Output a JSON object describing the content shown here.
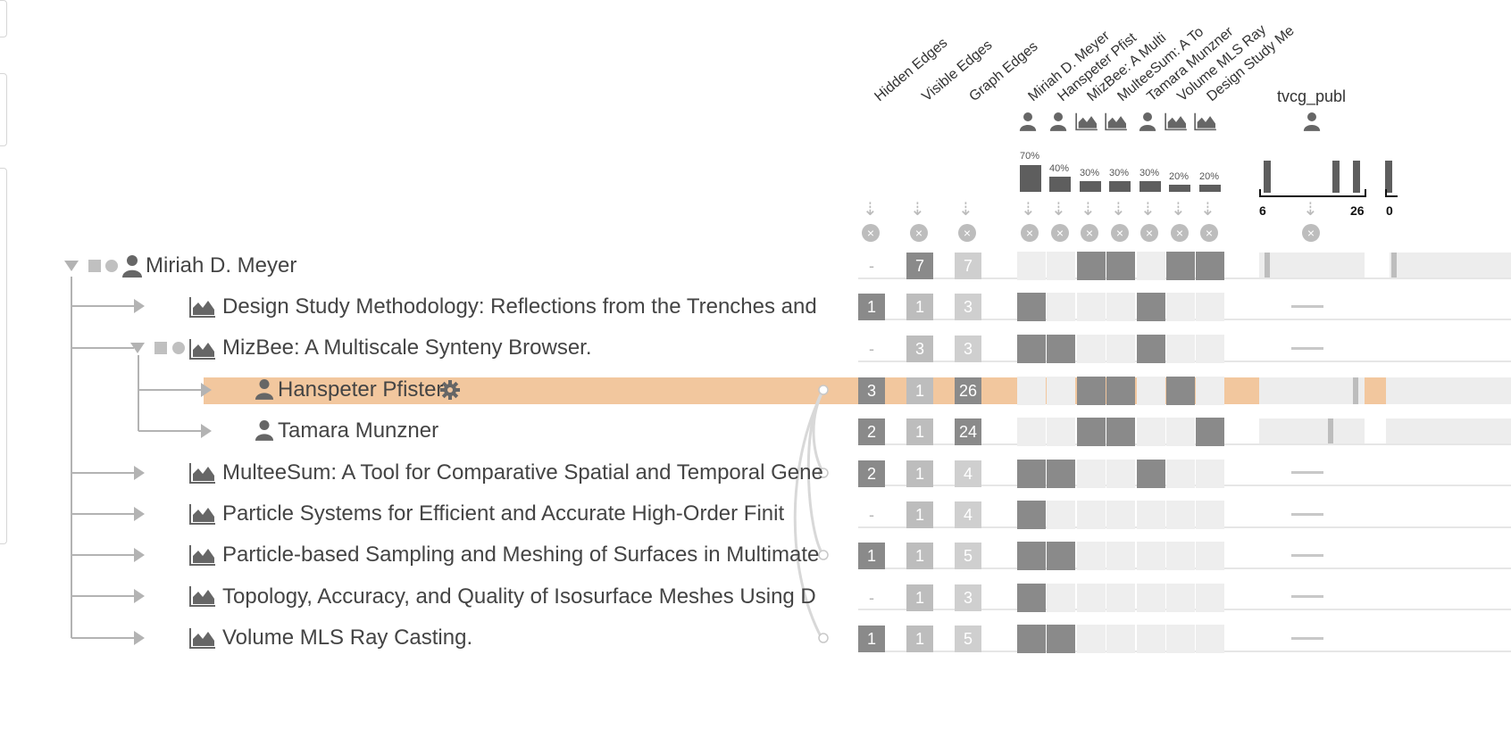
{
  "columns": {
    "headers": [
      "Hidden Edges",
      "Visible Edges",
      "Graph Edges"
    ],
    "matrix_headers": [
      "Miriah D. Meyer",
      "Hanspeter Pfist",
      "MizBee: A Multi",
      "MulteeSum: A To",
      "Tamara Munzner",
      "Volume MLS Ray",
      "Design Study Me"
    ],
    "matrix_header_icons": [
      "person-icon",
      "person-icon",
      "area-chart-icon",
      "area-chart-icon",
      "person-icon",
      "area-chart-icon",
      "area-chart-icon"
    ],
    "percentages": [
      "70%",
      "40%",
      "30%",
      "30%",
      "30%",
      "20%",
      "20%"
    ],
    "percent_values": [
      70,
      40,
      30,
      30,
      30,
      20,
      20
    ],
    "attribute_header": "tvcg_publ",
    "attribute_icon": "person-icon",
    "axis_min": "6",
    "axis_max": "26",
    "axis_next": "0"
  },
  "rows": [
    {
      "label": "Miriah D. Meyer",
      "icon": "person-icon",
      "hidden": "-",
      "visible": "7",
      "graph": "7",
      "matrix": [
        0,
        0,
        1,
        1,
        0,
        1,
        1
      ]
    },
    {
      "label": "Design Study Methodology: Reflections from the Trenches and",
      "icon": "area-chart-icon",
      "hidden": "1",
      "visible": "1",
      "graph": "3",
      "matrix": [
        1,
        0,
        0,
        0,
        1,
        0,
        0
      ]
    },
    {
      "label": "MizBee: A Multiscale Synteny Browser.",
      "icon": "area-chart-icon",
      "hidden": "-",
      "visible": "3",
      "graph": "3",
      "matrix": [
        1,
        1,
        0,
        0,
        1,
        0,
        0
      ]
    },
    {
      "label": "Hanspeter Pfister",
      "icon": "person-icon",
      "hidden": "3",
      "visible": "1",
      "graph": "26",
      "matrix": [
        0,
        0,
        1,
        1,
        0,
        1,
        0
      ],
      "highlighted": true
    },
    {
      "label": "Tamara Munzner",
      "icon": "person-icon",
      "hidden": "2",
      "visible": "1",
      "graph": "24",
      "matrix": [
        0,
        0,
        1,
        1,
        0,
        0,
        1
      ]
    },
    {
      "label": "MulteeSum: A Tool for Comparative Spatial and Temporal Gene",
      "icon": "area-chart-icon",
      "hidden": "2",
      "visible": "1",
      "graph": "4",
      "matrix": [
        1,
        1,
        0,
        0,
        1,
        0,
        0
      ]
    },
    {
      "label": "Particle Systems for Efficient and Accurate High-Order Finit",
      "icon": "area-chart-icon",
      "hidden": "-",
      "visible": "1",
      "graph": "4",
      "matrix": [
        1,
        0,
        0,
        0,
        0,
        0,
        0
      ]
    },
    {
      "label": "Particle-based Sampling and Meshing of Surfaces in Multimate",
      "icon": "area-chart-icon",
      "hidden": "1",
      "visible": "1",
      "graph": "5",
      "matrix": [
        1,
        1,
        0,
        0,
        0,
        0,
        0
      ]
    },
    {
      "label": "Topology, Accuracy, and Quality of Isosurface Meshes Using D",
      "icon": "area-chart-icon",
      "hidden": "-",
      "visible": "1",
      "graph": "3",
      "matrix": [
        1,
        0,
        0,
        0,
        0,
        0,
        0
      ]
    },
    {
      "label": "Volume MLS Ray Casting.",
      "icon": "area-chart-icon",
      "hidden": "1",
      "visible": "1",
      "graph": "5",
      "matrix": [
        1,
        1,
        0,
        0,
        0,
        0,
        0
      ]
    }
  ]
}
